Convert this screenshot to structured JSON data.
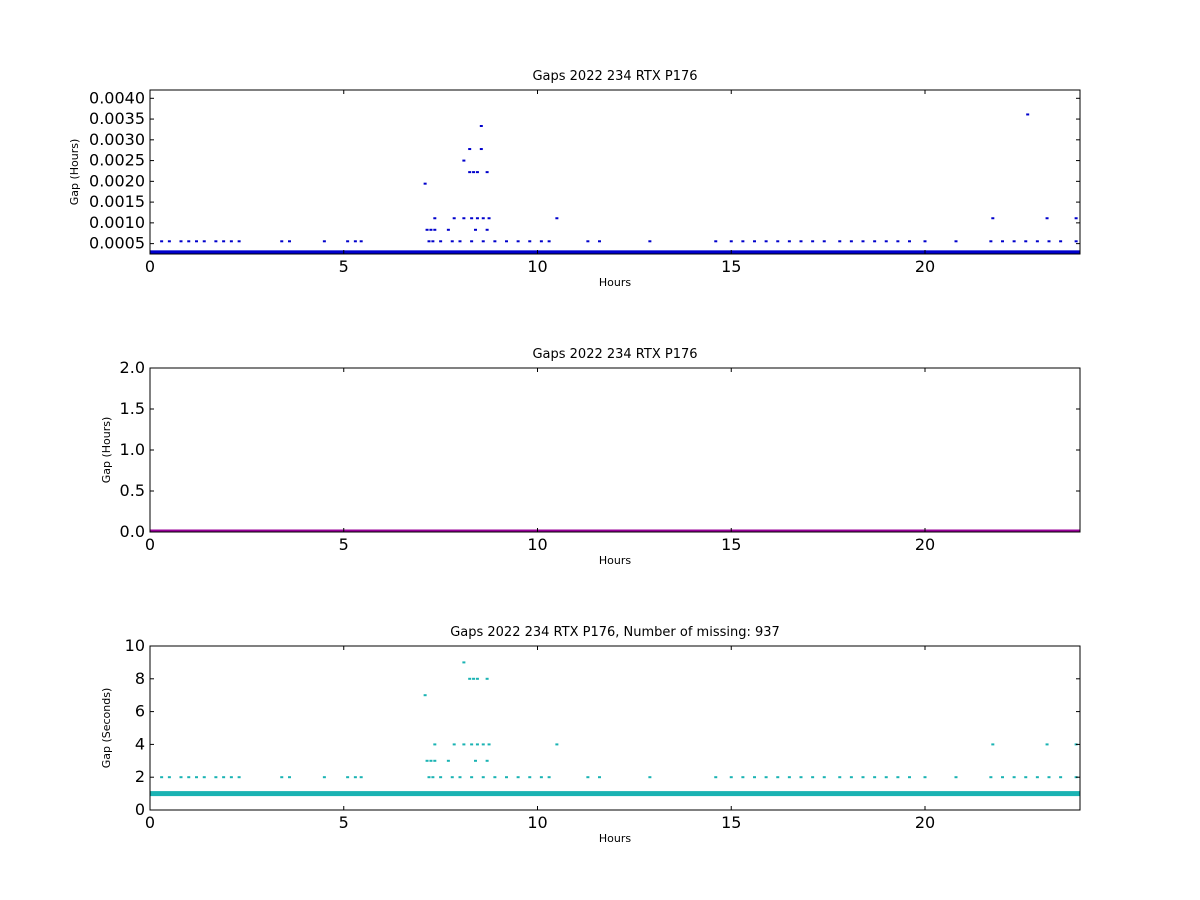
{
  "chart_data": [
    {
      "type": "scatter",
      "title": "Gaps 2022 234 RTX  P176",
      "xlabel": "Hours",
      "ylabel": "Gap (Hours)",
      "xlim": [
        0,
        24
      ],
      "ylim": [
        0.00025,
        0.0042
      ],
      "xticks": [
        0,
        5,
        10,
        15,
        20
      ],
      "xtick_labels": [
        "0",
        "5",
        "10",
        "15",
        "20"
      ],
      "yticks": [
        0.0005,
        0.001,
        0.0015,
        0.002,
        0.0025,
        0.003,
        0.0035,
        0.004
      ],
      "ytick_labels": [
        "0.0005",
        "0.0010",
        "0.0015",
        "0.0020",
        "0.0025",
        "0.0030",
        "0.0035",
        "0.0040"
      ],
      "color": "#0000cc",
      "baseline": 0.000278,
      "grid": false,
      "series": [
        {
          "x": [
            0.3,
            0.5,
            0.8,
            1.0,
            1.2,
            1.4,
            1.7,
            1.9,
            2.1,
            2.3,
            3.4,
            3.6,
            4.5,
            5.1,
            5.3,
            5.45,
            7.2,
            7.3,
            7.5,
            7.8,
            8.0,
            8.3,
            8.6,
            8.9,
            9.2,
            9.5,
            9.8,
            10.1,
            10.3,
            11.3,
            11.6,
            12.9,
            14.6,
            15.0,
            15.3,
            15.6,
            15.9,
            16.2,
            16.5,
            16.8,
            17.1,
            17.4,
            17.8,
            18.1,
            18.4,
            18.7,
            19.0,
            19.3,
            19.6,
            20.0,
            20.8,
            21.7,
            22.0,
            22.3,
            22.6,
            22.9,
            23.2,
            23.5,
            23.9,
            7.15,
            7.25,
            7.35,
            7.7,
            8.4,
            8.7,
            7.35,
            7.85,
            8.1,
            8.3,
            8.45,
            8.6,
            8.75,
            10.5,
            21.75,
            23.15,
            23.9,
            8.25,
            8.35,
            8.45,
            8.7,
            8.1,
            8.25,
            8.55,
            7.1,
            22.65,
            8.55
          ],
          "y": [
            0.000556,
            0.000556,
            0.000556,
            0.000556,
            0.000556,
            0.000556,
            0.000556,
            0.000556,
            0.000556,
            0.000556,
            0.000556,
            0.000556,
            0.000556,
            0.000556,
            0.000556,
            0.000556,
            0.000556,
            0.000556,
            0.000556,
            0.000556,
            0.000556,
            0.000556,
            0.000556,
            0.000556,
            0.000556,
            0.000556,
            0.000556,
            0.000556,
            0.000556,
            0.000556,
            0.000556,
            0.000556,
            0.000556,
            0.000556,
            0.000556,
            0.000556,
            0.000556,
            0.000556,
            0.000556,
            0.000556,
            0.000556,
            0.000556,
            0.000556,
            0.000556,
            0.000556,
            0.000556,
            0.000556,
            0.000556,
            0.000556,
            0.000556,
            0.000556,
            0.000556,
            0.000556,
            0.000556,
            0.000556,
            0.000556,
            0.000556,
            0.000556,
            0.000556,
            0.000833,
            0.000833,
            0.000833,
            0.000833,
            0.000833,
            0.000833,
            0.001111,
            0.001111,
            0.001111,
            0.001111,
            0.001111,
            0.001111,
            0.001111,
            0.001111,
            0.001111,
            0.001111,
            0.001111,
            0.002222,
            0.002222,
            0.002222,
            0.002222,
            0.0025,
            0.002778,
            0.002778,
            0.001944,
            0.003611,
            0.003333
          ]
        }
      ]
    },
    {
      "type": "scatter",
      "title": "Gaps 2022 234 RTX  P176",
      "xlabel": "Hours",
      "ylabel": "Gap (Hours)",
      "xlim": [
        0,
        24
      ],
      "ylim": [
        0,
        2.0
      ],
      "xticks": [
        0,
        5,
        10,
        15,
        20
      ],
      "xtick_labels": [
        "0",
        "5",
        "10",
        "15",
        "20"
      ],
      "yticks": [
        0,
        0.5,
        1.0,
        1.5,
        2.0
      ],
      "ytick_labels": [
        "0.0",
        "0.5",
        "1.0",
        "1.5",
        "2.0"
      ],
      "color": "#990099",
      "baseline": 0.0,
      "grid": false,
      "series": [
        {
          "x": [],
          "y": []
        }
      ]
    },
    {
      "type": "scatter",
      "title": "Gaps 2022 234 RTX  P176, Number of missing: 937",
      "xlabel": "Hours",
      "ylabel": "Gap (Seconds)",
      "xlim": [
        0,
        24
      ],
      "ylim": [
        0,
        10
      ],
      "xticks": [
        0,
        5,
        10,
        15,
        20
      ],
      "xtick_labels": [
        "0",
        "5",
        "10",
        "15",
        "20"
      ],
      "yticks": [
        0,
        2,
        4,
        6,
        8,
        10
      ],
      "ytick_labels": [
        "0",
        "2",
        "4",
        "6",
        "8",
        "10"
      ],
      "color": "#1ab3b3",
      "baseline": 1,
      "grid": false,
      "series": [
        {
          "x": [
            0.3,
            0.5,
            0.8,
            1.0,
            1.2,
            1.4,
            1.7,
            1.9,
            2.1,
            2.3,
            3.4,
            3.6,
            4.5,
            5.1,
            5.3,
            5.45,
            7.2,
            7.3,
            7.5,
            7.8,
            8.0,
            8.3,
            8.6,
            8.9,
            9.2,
            9.5,
            9.8,
            10.1,
            10.3,
            11.3,
            11.6,
            12.9,
            14.6,
            15.0,
            15.3,
            15.6,
            15.9,
            16.2,
            16.5,
            16.8,
            17.1,
            17.4,
            17.8,
            18.1,
            18.4,
            18.7,
            19.0,
            19.3,
            19.6,
            20.0,
            20.8,
            21.7,
            22.0,
            22.3,
            22.6,
            22.9,
            23.2,
            23.5,
            23.9,
            7.15,
            7.25,
            7.35,
            7.7,
            8.4,
            8.7,
            7.35,
            7.85,
            8.1,
            8.3,
            8.45,
            8.6,
            8.75,
            10.5,
            21.75,
            23.15,
            23.9,
            8.25,
            8.35,
            8.45,
            8.7,
            8.1,
            7.1
          ],
          "y": [
            2,
            2,
            2,
            2,
            2,
            2,
            2,
            2,
            2,
            2,
            2,
            2,
            2,
            2,
            2,
            2,
            2,
            2,
            2,
            2,
            2,
            2,
            2,
            2,
            2,
            2,
            2,
            2,
            2,
            2,
            2,
            2,
            2,
            2,
            2,
            2,
            2,
            2,
            2,
            2,
            2,
            2,
            2,
            2,
            2,
            2,
            2,
            2,
            2,
            2,
            2,
            2,
            2,
            2,
            2,
            2,
            2,
            2,
            2,
            3,
            3,
            3,
            3,
            3,
            3,
            4,
            4,
            4,
            4,
            4,
            4,
            4,
            4,
            4,
            4,
            4,
            8,
            8,
            8,
            8,
            9,
            7
          ]
        }
      ]
    }
  ]
}
